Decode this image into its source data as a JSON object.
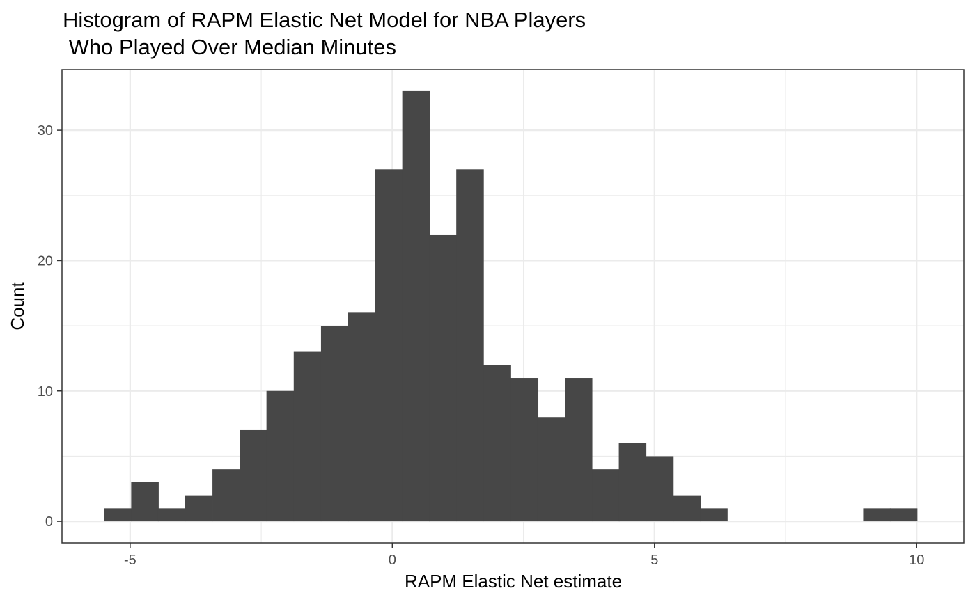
{
  "chart_data": {
    "type": "bar",
    "title_lines": [
      "Histogram of RAPM Elastic Net Model for NBA Players",
      " Who Played Over Median Minutes"
    ],
    "xlabel": "RAPM Elastic Net estimate",
    "ylabel": "Count",
    "xlim": [
      -6.3,
      10.9
    ],
    "ylim": [
      -1.65,
      34.65
    ],
    "x_ticks": [
      -5,
      0,
      5,
      10
    ],
    "x_tick_labels": [
      "-5",
      "0",
      "5",
      "10"
    ],
    "y_ticks": [
      0,
      10,
      20,
      30
    ],
    "y_tick_labels": [
      "0",
      "10",
      "20",
      "30"
    ],
    "bin_width": 0.517,
    "bins": [
      {
        "x0": -5.5,
        "count": 1
      },
      {
        "x0": -4.98,
        "count": 3
      },
      {
        "x0": -4.47,
        "count": 1
      },
      {
        "x0": -3.95,
        "count": 2
      },
      {
        "x0": -3.43,
        "count": 4
      },
      {
        "x0": -2.91,
        "count": 7
      },
      {
        "x0": -2.4,
        "count": 10
      },
      {
        "x0": -1.88,
        "count": 13
      },
      {
        "x0": -1.36,
        "count": 15
      },
      {
        "x0": -0.85,
        "count": 16
      },
      {
        "x0": -0.33,
        "count": 27
      },
      {
        "x0": 0.19,
        "count": 33
      },
      {
        "x0": 0.7,
        "count": 22
      },
      {
        "x0": 1.22,
        "count": 27
      },
      {
        "x0": 1.74,
        "count": 12
      },
      {
        "x0": 2.26,
        "count": 11
      },
      {
        "x0": 2.77,
        "count": 8
      },
      {
        "x0": 3.29,
        "count": 11
      },
      {
        "x0": 3.81,
        "count": 4
      },
      {
        "x0": 4.32,
        "count": 6
      },
      {
        "x0": 4.84,
        "count": 5
      },
      {
        "x0": 5.36,
        "count": 2
      },
      {
        "x0": 5.87,
        "count": 1
      },
      {
        "x0": 6.39,
        "count": 0
      },
      {
        "x0": 6.91,
        "count": 0
      },
      {
        "x0": 7.43,
        "count": 0
      },
      {
        "x0": 7.94,
        "count": 0
      },
      {
        "x0": 8.46,
        "count": 0
      },
      {
        "x0": 8.98,
        "count": 1
      },
      {
        "x0": 9.49,
        "count": 1
      }
    ],
    "grid": true,
    "bar_color": "#474747",
    "grid_color": "#ebebeb",
    "border_color": "#333333",
    "tick_label_color": "#4d4d4d"
  }
}
